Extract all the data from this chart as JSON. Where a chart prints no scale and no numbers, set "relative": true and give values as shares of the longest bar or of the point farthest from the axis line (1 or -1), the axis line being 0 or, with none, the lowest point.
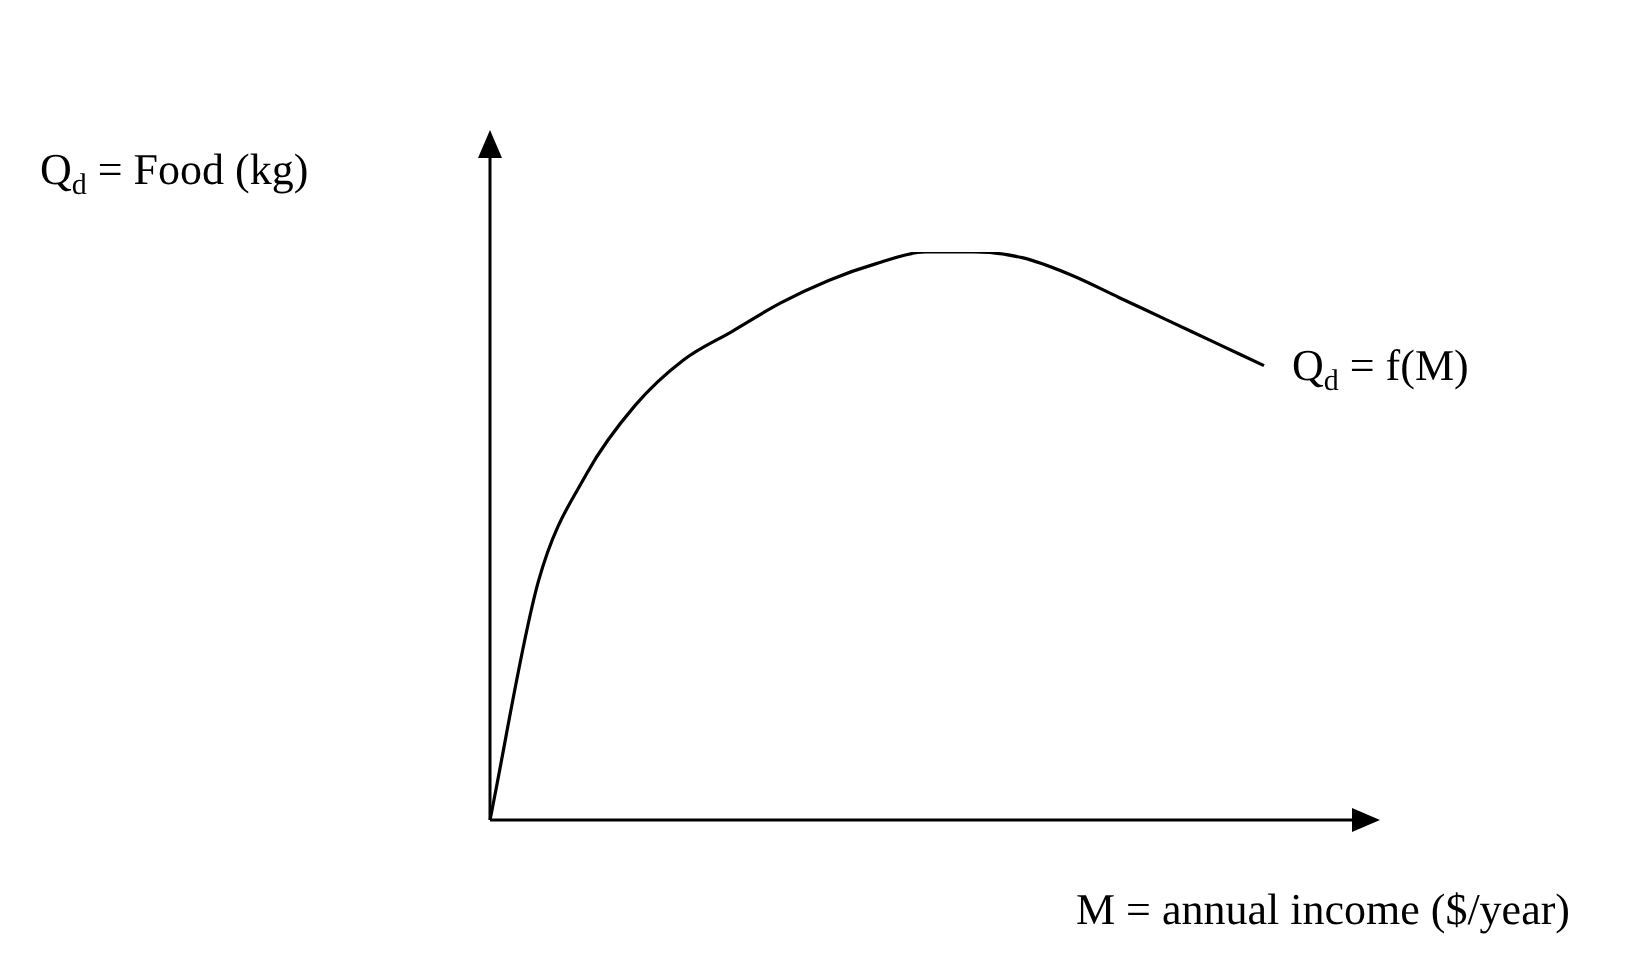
{
  "chart_data": {
    "type": "line",
    "relative": true,
    "xlabel": "M = annual income ($/year)",
    "ylabel": "Q$_{d}$ = Food (kg)",
    "categories": [
      null,
      null,
      null,
      null,
      null,
      null,
      null,
      null,
      null,
      null,
      null,
      null,
      null,
      null,
      null,
      null,
      null
    ],
    "series": [
      {
        "name": "Q$_{d}$ = f(M)",
        "color": "#000000",
        "values": [
          0,
          0.42,
          0.61,
          0.73,
          0.81,
          0.86,
          0.91,
          0.95,
          0.98,
          1,
          1,
          0.99,
          0.96,
          0.92,
          0.88,
          0.84,
          0.8
        ]
      }
    ],
    "legend": false,
    "marker": "none",
    "line_style": "solid",
    "tick_labels": false
  }
}
